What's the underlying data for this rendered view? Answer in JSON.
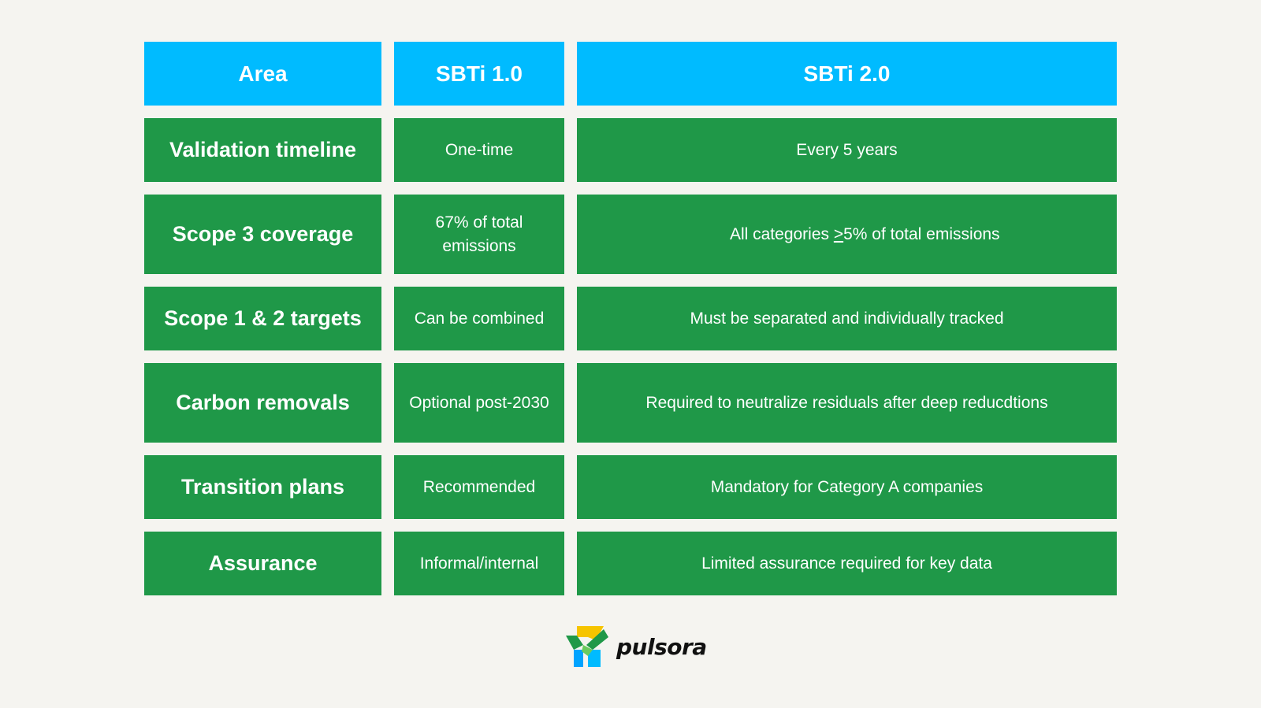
{
  "table": {
    "headers": [
      "Area",
      "SBTi 1.0",
      "SBTi 2.0"
    ],
    "rows": [
      {
        "area": "Validation timeline",
        "sbti1": "One-time",
        "sbti2": "Every 5 years"
      },
      {
        "area": "Scope 3 coverage",
        "sbti1": "67% of total emissions",
        "sbti2_prefix": "All categories ",
        "sbti2_symbol": ">",
        "sbti2_suffix": "5% of total emissions"
      },
      {
        "area": "Scope 1 & 2 targets",
        "sbti1": "Can be combined",
        "sbti2": "Must be separated and individually tracked"
      },
      {
        "area": "Carbon removals",
        "sbti1": "Optional post-2030",
        "sbti2": "Required to neutralize residuals after deep reducdtions"
      },
      {
        "area": "Transition plans",
        "sbti1": "Recommended",
        "sbti2": "Mandatory for Category A companies"
      },
      {
        "area": "Assurance",
        "sbti1": "Informal/internal",
        "sbti2": "Limited assurance required for key data"
      }
    ]
  },
  "logo": {
    "text": "pulsora",
    "icon": "pulsora-logo-icon"
  },
  "colors": {
    "header": "#00bbff",
    "row": "#1f9848",
    "background": "#f5f4f0"
  }
}
